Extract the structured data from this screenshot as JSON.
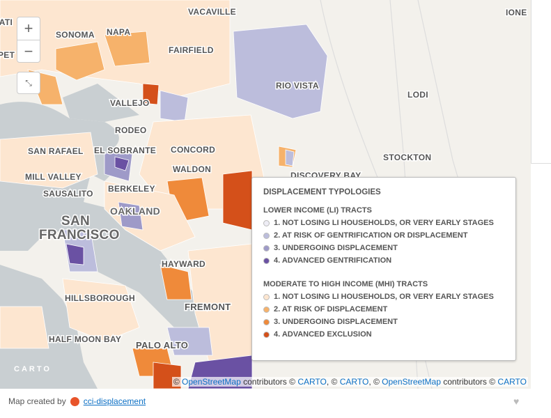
{
  "map": {
    "places": [
      "VACAVILLE",
      "SONOMA",
      "NAPA",
      "FAIRFIELD",
      "IONE",
      "RIO VISTA",
      "LODI",
      "VALLEJO",
      "RODEO",
      "SAN RAFAEL",
      "EL SOBRANTE",
      "CONCORD",
      "WALDON",
      "STOCKTON",
      "MILL VALLEY",
      "DISCOVERY BAY",
      "SAUSALITO",
      "BERKELEY",
      "OAKLAND",
      "SAN",
      "FRANCISCO",
      "HAYWARD",
      "HILLSBOROUGH",
      "FREMONT",
      "HALF MOON BAY",
      "PALO ALTO",
      "TATI",
      "PET"
    ],
    "zoom_in": "+",
    "zoom_out": "−",
    "logo": "CARTO"
  },
  "legend": {
    "title": "DISPLACEMENT TYPOLOGIES",
    "groups": [
      {
        "heading": "LOWER INCOME (LI) TRACTS",
        "items": [
          {
            "label": "1. NOT LOSING LI HOUSEHOLDS, OR VERY EARLY STAGES",
            "color": "#eeedf5"
          },
          {
            "label": "2. AT RISK OF GENTRIFICATION OR DISPLACEMENT",
            "color": "#bcbddc"
          },
          {
            "label": "3. UNDERGOING DISPLACEMENT",
            "color": "#9e9ac8"
          },
          {
            "label": "4. ADVANCED GENTRIFICATION",
            "color": "#6a51a3"
          }
        ]
      },
      {
        "heading": "MODERATE TO HIGH INCOME (MHI) TRACTS",
        "items": [
          {
            "label": "1. NOT LOSING LI HOUSEHOLDS, OR VERY EARLY STAGES",
            "color": "#fde6d0"
          },
          {
            "label": "2. AT RISK OF DISPLACEMENT",
            "color": "#f6b26b"
          },
          {
            "label": "3. UNDERGOING DISPLACEMENT",
            "color": "#ef8a3a"
          },
          {
            "label": "4. ADVANCED EXCLUSION",
            "color": "#d4501a"
          }
        ]
      }
    ]
  },
  "attribution": [
    {
      "text": "© ",
      "link": false
    },
    {
      "text": "OpenStreetMap",
      "link": true
    },
    {
      "text": " contributors © ",
      "link": false
    },
    {
      "text": "CARTO",
      "link": true
    },
    {
      "text": ", © ",
      "link": false
    },
    {
      "text": "CARTO",
      "link": true
    },
    {
      "text": ", © ",
      "link": false
    },
    {
      "text": "OpenStreetMap",
      "link": true
    },
    {
      "text": " contributors © ",
      "link": false
    },
    {
      "text": "CARTO",
      "link": true
    }
  ],
  "footer": {
    "prefix": "Map created by",
    "link": "cci-displacement"
  }
}
